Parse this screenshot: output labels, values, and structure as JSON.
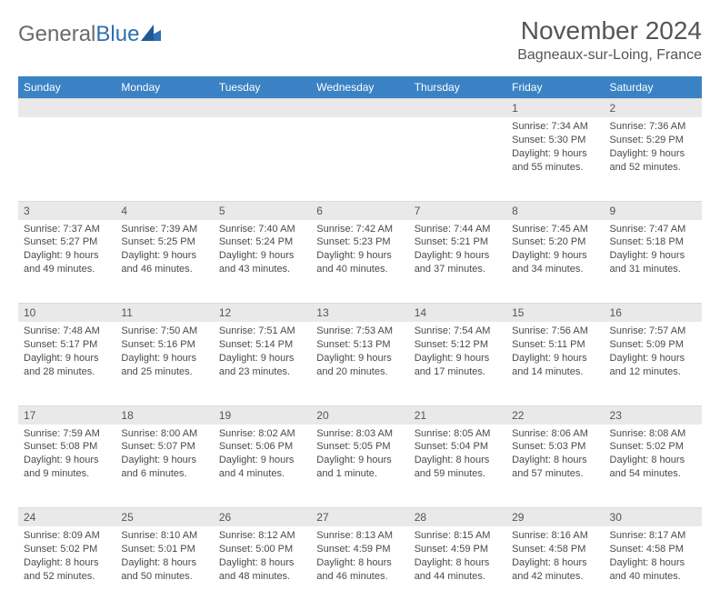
{
  "logo": {
    "text1": "General",
    "text2": "Blue"
  },
  "title": "November 2024",
  "location": "Bagneaux-sur-Loing, France",
  "colors": {
    "header_bg": "#3a82c4",
    "header_text": "#ffffff",
    "daynum_bg": "#e9e9e9",
    "text": "#4a4a4a",
    "title": "#555555"
  },
  "days": [
    "Sunday",
    "Monday",
    "Tuesday",
    "Wednesday",
    "Thursday",
    "Friday",
    "Saturday"
  ],
  "weeks": [
    [
      null,
      null,
      null,
      null,
      null,
      {
        "n": "1",
        "sr": "7:34 AM",
        "ss": "5:30 PM",
        "dl": "9 hours and 55 minutes."
      },
      {
        "n": "2",
        "sr": "7:36 AM",
        "ss": "5:29 PM",
        "dl": "9 hours and 52 minutes."
      }
    ],
    [
      {
        "n": "3",
        "sr": "7:37 AM",
        "ss": "5:27 PM",
        "dl": "9 hours and 49 minutes."
      },
      {
        "n": "4",
        "sr": "7:39 AM",
        "ss": "5:25 PM",
        "dl": "9 hours and 46 minutes."
      },
      {
        "n": "5",
        "sr": "7:40 AM",
        "ss": "5:24 PM",
        "dl": "9 hours and 43 minutes."
      },
      {
        "n": "6",
        "sr": "7:42 AM",
        "ss": "5:23 PM",
        "dl": "9 hours and 40 minutes."
      },
      {
        "n": "7",
        "sr": "7:44 AM",
        "ss": "5:21 PM",
        "dl": "9 hours and 37 minutes."
      },
      {
        "n": "8",
        "sr": "7:45 AM",
        "ss": "5:20 PM",
        "dl": "9 hours and 34 minutes."
      },
      {
        "n": "9",
        "sr": "7:47 AM",
        "ss": "5:18 PM",
        "dl": "9 hours and 31 minutes."
      }
    ],
    [
      {
        "n": "10",
        "sr": "7:48 AM",
        "ss": "5:17 PM",
        "dl": "9 hours and 28 minutes."
      },
      {
        "n": "11",
        "sr": "7:50 AM",
        "ss": "5:16 PM",
        "dl": "9 hours and 25 minutes."
      },
      {
        "n": "12",
        "sr": "7:51 AM",
        "ss": "5:14 PM",
        "dl": "9 hours and 23 minutes."
      },
      {
        "n": "13",
        "sr": "7:53 AM",
        "ss": "5:13 PM",
        "dl": "9 hours and 20 minutes."
      },
      {
        "n": "14",
        "sr": "7:54 AM",
        "ss": "5:12 PM",
        "dl": "9 hours and 17 minutes."
      },
      {
        "n": "15",
        "sr": "7:56 AM",
        "ss": "5:11 PM",
        "dl": "9 hours and 14 minutes."
      },
      {
        "n": "16",
        "sr": "7:57 AM",
        "ss": "5:09 PM",
        "dl": "9 hours and 12 minutes."
      }
    ],
    [
      {
        "n": "17",
        "sr": "7:59 AM",
        "ss": "5:08 PM",
        "dl": "9 hours and 9 minutes."
      },
      {
        "n": "18",
        "sr": "8:00 AM",
        "ss": "5:07 PM",
        "dl": "9 hours and 6 minutes."
      },
      {
        "n": "19",
        "sr": "8:02 AM",
        "ss": "5:06 PM",
        "dl": "9 hours and 4 minutes."
      },
      {
        "n": "20",
        "sr": "8:03 AM",
        "ss": "5:05 PM",
        "dl": "9 hours and 1 minute."
      },
      {
        "n": "21",
        "sr": "8:05 AM",
        "ss": "5:04 PM",
        "dl": "8 hours and 59 minutes."
      },
      {
        "n": "22",
        "sr": "8:06 AM",
        "ss": "5:03 PM",
        "dl": "8 hours and 57 minutes."
      },
      {
        "n": "23",
        "sr": "8:08 AM",
        "ss": "5:02 PM",
        "dl": "8 hours and 54 minutes."
      }
    ],
    [
      {
        "n": "24",
        "sr": "8:09 AM",
        "ss": "5:02 PM",
        "dl": "8 hours and 52 minutes."
      },
      {
        "n": "25",
        "sr": "8:10 AM",
        "ss": "5:01 PM",
        "dl": "8 hours and 50 minutes."
      },
      {
        "n": "26",
        "sr": "8:12 AM",
        "ss": "5:00 PM",
        "dl": "8 hours and 48 minutes."
      },
      {
        "n": "27",
        "sr": "8:13 AM",
        "ss": "4:59 PM",
        "dl": "8 hours and 46 minutes."
      },
      {
        "n": "28",
        "sr": "8:15 AM",
        "ss": "4:59 PM",
        "dl": "8 hours and 44 minutes."
      },
      {
        "n": "29",
        "sr": "8:16 AM",
        "ss": "4:58 PM",
        "dl": "8 hours and 42 minutes."
      },
      {
        "n": "30",
        "sr": "8:17 AM",
        "ss": "4:58 PM",
        "dl": "8 hours and 40 minutes."
      }
    ]
  ],
  "labels": {
    "sunrise": "Sunrise:",
    "sunset": "Sunset:",
    "daylight": "Daylight:"
  }
}
